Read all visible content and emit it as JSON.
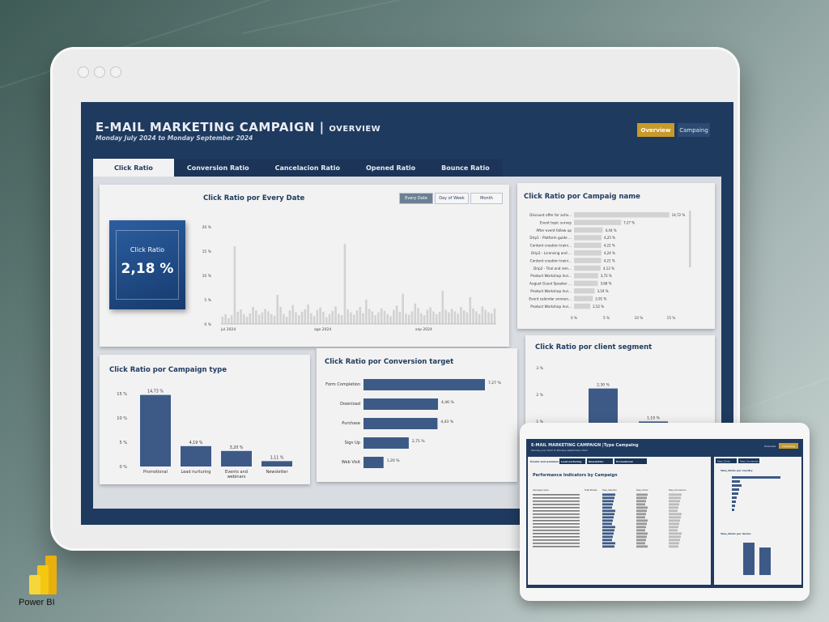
{
  "header": {
    "title": "E-MAIL MARKETING CAMPAIGN",
    "subtitle": "OVERVIEW",
    "date_range": "Monday July  2024 to Monday September 2024",
    "nav_overview": "Overview",
    "nav_campaing": "Campaing"
  },
  "tabs": [
    {
      "label": "Click Ratio"
    },
    {
      "label": "Conversion Ratio"
    },
    {
      "label": "Cancelacion Ratio"
    },
    {
      "label": "Opened Ratio"
    },
    {
      "label": "Bounce Ratio"
    }
  ],
  "kpi": {
    "label": "Click Ratio",
    "value": "2,18 %"
  },
  "date_chart": {
    "title": "Click Ratio por Every Date",
    "toggles": [
      "Every Date",
      "Day of Week",
      "Month"
    ],
    "y_ticks": [
      "20 %",
      "15 %",
      "10 %",
      "5 %",
      "0 %"
    ],
    "x_ticks": [
      "jul 2024",
      "ago 2024",
      "sep 2024"
    ]
  },
  "campaign_name_chart": {
    "title": "Click Ratio por Campaig name",
    "x_ticks": [
      "0 %",
      "5 %",
      "10 %",
      "15 %"
    ]
  },
  "campaign_type_chart": {
    "title": "Click Ratio por Campaign type",
    "y_ticks": [
      "15 %",
      "10 %",
      "5 %",
      "0 %"
    ]
  },
  "conversion_target_chart": {
    "title": "Click Ratio por Conversion target"
  },
  "client_segment_chart": {
    "title": "Click Ratio por client segment",
    "y_ticks": [
      "3 %",
      "2 %",
      "1 %"
    ]
  },
  "chart_data": [
    {
      "type": "bar",
      "title": "Click Ratio por Every Date",
      "ylim": [
        0,
        20
      ],
      "values": [
        1.5,
        2,
        1.2,
        1.8,
        16,
        2.5,
        3,
        2,
        1.5,
        2.2,
        3.5,
        2.8,
        1.9,
        2.4,
        3.1,
        2.6,
        2,
        1.7,
        6,
        3.5,
        2.1,
        1.5,
        2.8,
        3.9,
        2.4,
        1.8,
        2.5,
        3,
        4,
        2.2,
        1.6,
        2.9,
        3.4,
        2.5,
        1.4,
        2,
        2.7,
        3.6,
        2.1,
        1.8,
        16.5,
        3,
        2.4,
        1.9,
        2.8,
        3.5,
        2.2,
        5,
        3.1,
        2.6,
        1.8,
        2.4,
        3.2,
        2.7,
        2,
        1.6,
        2.9,
        3.8,
        2.5,
        6.2,
        2.1,
        1.9,
        2.6,
        4.2,
        3.3,
        2.2,
        1.8,
        2.9,
        3.4,
        2.6,
        2,
        2.5,
        6.8,
        2.9,
        2.4,
        3.1,
        2.6,
        2.1,
        3.5,
        2.8,
        2.4,
        5.5,
        3.2,
        2.6,
        2,
        3.6,
        2.9,
        2.4,
        2.2,
        3.2
      ],
      "x_ticks": [
        "jul 2024",
        "ago 2024",
        "sep 2024"
      ]
    },
    {
      "type": "bar",
      "orientation": "horizontal",
      "title": "Click Ratio por Campaig name",
      "categories": [
        "Discount offer for activ...",
        "Event topic survey",
        "After event follow up",
        "Drip1 - Platform guide ...",
        "Content creation traini...",
        "Drip2 - Licensing and ...",
        "Content creation traini...",
        "Drip2 - Trial and rem...",
        "Product Workshop Invi...",
        "August Guest Speaker ...",
        "Product Workshop Invi...",
        "Event calendar announ...",
        "Product Workshop Invi..."
      ],
      "values": [
        14.72,
        7.27,
        4.44,
        4.25,
        4.22,
        4.24,
        4.21,
        4.12,
        3.72,
        3.68,
        3.19,
        2.91,
        2.52
      ],
      "labels": [
        "14,72 %",
        "7,27 %",
        "4,44 %",
        "4,25 %",
        "4,22 %",
        "4,24 %",
        "4,21 %",
        "4,12 %",
        "3,72 %",
        "3,68 %",
        "3,19 %",
        "2,91 %",
        "2,52 %"
      ],
      "xlim": [
        0,
        15
      ]
    },
    {
      "type": "bar",
      "title": "Click Ratio por Campaign type",
      "categories": [
        "Promotional",
        "Lead nurturing",
        "Events and webinars",
        "Newsletter"
      ],
      "values": [
        14.73,
        4.19,
        3.2,
        1.11
      ],
      "labels": [
        "14,73 %",
        "4,19 %",
        "3,20 %",
        "1,11 %"
      ],
      "ylim": [
        0,
        15
      ]
    },
    {
      "type": "bar",
      "orientation": "horizontal",
      "title": "Click Ratio por Conversion target",
      "categories": [
        "Form Completion",
        "Download",
        "Purchase",
        "Sign Up",
        "Web Visit"
      ],
      "values": [
        7.27,
        4.46,
        4.43,
        2.71,
        1.2
      ],
      "labels": [
        "7,27 %",
        "4,46 %",
        "4,43 %",
        "2,71 %",
        "1,20 %"
      ]
    },
    {
      "type": "bar",
      "title": "Click Ratio por client segment",
      "values": [
        2.3,
        1.19
      ],
      "labels": [
        "2,30 %",
        "1,19 %"
      ],
      "ylim": [
        0,
        3
      ]
    }
  ],
  "mini": {
    "title": "E-MAIL MARKETING CAMPAIGN |Type Campaing",
    "date": "Monday July  2024 to Monday September 2024",
    "btn1": "Overview",
    "btn2": "Campaing",
    "tabs": [
      "Events and webinars",
      "Lead nurturing",
      "Newsletter",
      "Promotional"
    ],
    "right_tabs": [
      "Tasa_Clicks",
      "Tasa_Conversion"
    ],
    "section_title": "Performance Indicators by Campaign",
    "col_headers": [
      "Campaig name",
      "Total Emails",
      "Tasa_Abiertos",
      "Tasa_Clicks",
      "Tasa_Conversion"
    ],
    "right_title1": "Tasa_Clicks por country",
    "right_title2": "Tasa_Clicks por device"
  },
  "brand": {
    "label": "Power BI"
  },
  "colors": {
    "navy": "#1f3a5f",
    "bar": "#3d5a87",
    "accent": "#c79a2a",
    "gray_bar": "#d2d2d2"
  }
}
